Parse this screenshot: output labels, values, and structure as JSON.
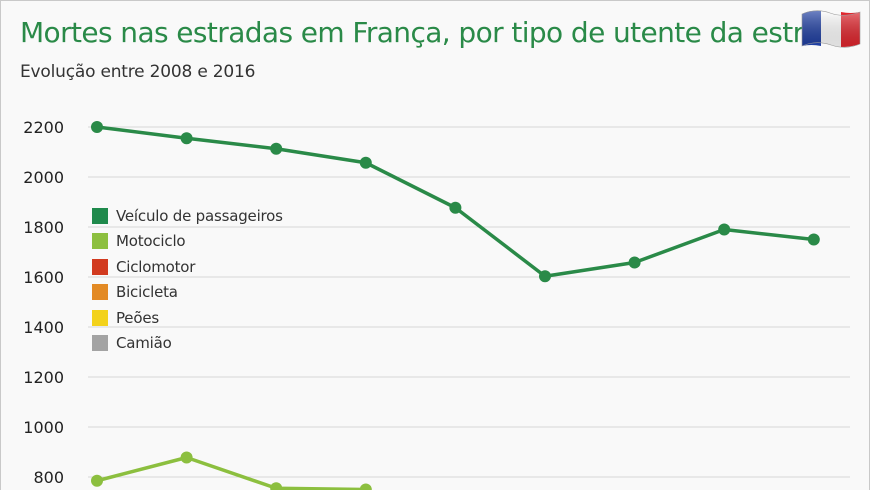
{
  "header": {
    "title": "Mortes nas estradas em França, por tipo de utente da estrada",
    "subtitle": "Evolução entre 2008 e 2016",
    "flag_icon": "france-flag-icon"
  },
  "colors": {
    "title": "#2a8a48",
    "grid": "#d6d6d6",
    "axis_text": "#222222"
  },
  "legend": {
    "items": [
      {
        "label": "Veículo de passageiros",
        "color": "#1f8a4c"
      },
      {
        "label": "Motociclo",
        "color": "#8cbf3f"
      },
      {
        "label": "Ciclomotor",
        "color": "#d23a1f"
      },
      {
        "label": "Bicicleta",
        "color": "#e38a24"
      },
      {
        "label": "Peões",
        "color": "#f3d21a"
      },
      {
        "label": "Camião",
        "color": "#a3a3a3"
      }
    ]
  },
  "chart_data": {
    "type": "line",
    "title": "Mortes nas estradas em França, por tipo de utente da estrada",
    "subtitle": "Evolução entre 2008 e 2016",
    "ylim": [
      800,
      2200
    ],
    "yticks": [
      "2200",
      "2000",
      "1800",
      "1600",
      "1400",
      "1200",
      "1000",
      "800"
    ],
    "grid": true,
    "legend_position": "left",
    "series": [
      {
        "name": "Veículo de passageiros",
        "color": "#2a8a48",
        "values": [
          2200,
          2155,
          2113,
          2057,
          1877,
          1603,
          1658,
          1790,
          1750
        ]
      },
      {
        "name": "Motociclo",
        "color": "#8cbf3f",
        "values": [
          785,
          878,
          755,
          750
        ]
      }
    ]
  }
}
